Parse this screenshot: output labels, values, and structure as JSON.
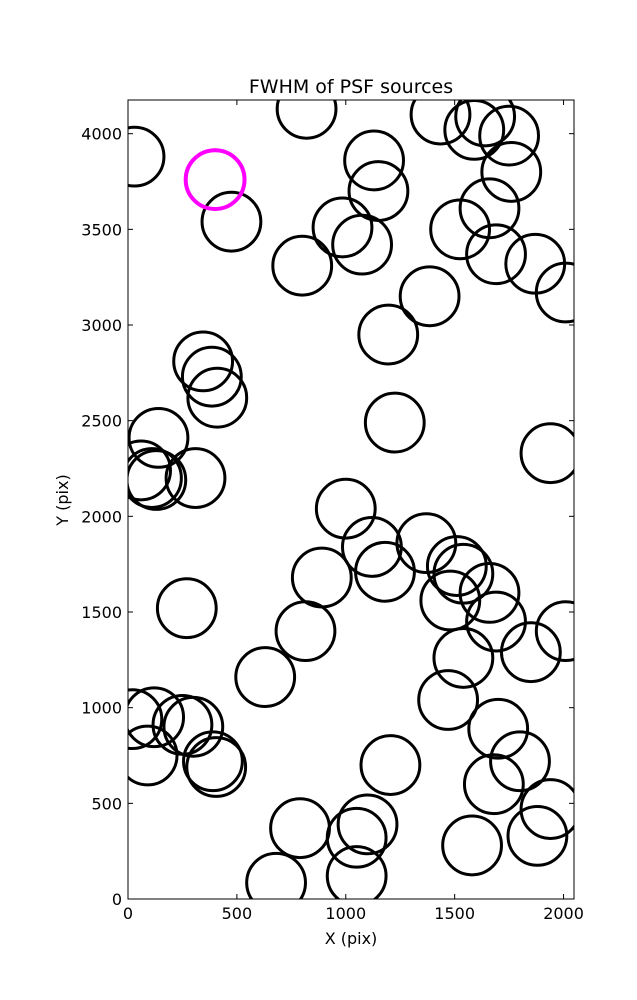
{
  "chart_data": {
    "type": "scatter",
    "title": "FWHM of PSF sources",
    "xlabel": "X (pix)",
    "ylabel": "Y (pix)",
    "xlim": [
      0,
      2048
    ],
    "ylim": [
      0,
      4176
    ],
    "xticks": [
      0,
      500,
      1000,
      1500,
      2000
    ],
    "yticks": [
      0,
      500,
      1000,
      1500,
      2000,
      2500,
      3000,
      3500,
      4000
    ],
    "grid": false,
    "marker": "open-circle",
    "marker_color": "#000000",
    "highlight_color": "#ff00ff",
    "highlight": {
      "x": 400,
      "y": 3760
    },
    "points": [
      {
        "x": 30,
        "y": 3880
      },
      {
        "x": 475,
        "y": 3540
      },
      {
        "x": 820,
        "y": 4130
      },
      {
        "x": 800,
        "y": 3310
      },
      {
        "x": 985,
        "y": 3510
      },
      {
        "x": 1075,
        "y": 3420
      },
      {
        "x": 1130,
        "y": 3860
      },
      {
        "x": 1150,
        "y": 3700
      },
      {
        "x": 1435,
        "y": 4100
      },
      {
        "x": 1590,
        "y": 4020
      },
      {
        "x": 1640,
        "y": 4090
      },
      {
        "x": 1750,
        "y": 3990
      },
      {
        "x": 1760,
        "y": 3800
      },
      {
        "x": 1660,
        "y": 3610
      },
      {
        "x": 1525,
        "y": 3500
      },
      {
        "x": 1690,
        "y": 3370
      },
      {
        "x": 1870,
        "y": 3320
      },
      {
        "x": 2010,
        "y": 3170
      },
      {
        "x": 1385,
        "y": 3150
      },
      {
        "x": 1195,
        "y": 2950
      },
      {
        "x": 345,
        "y": 2810
      },
      {
        "x": 385,
        "y": 2730
      },
      {
        "x": 410,
        "y": 2620
      },
      {
        "x": 140,
        "y": 2410
      },
      {
        "x": 60,
        "y": 2240
      },
      {
        "x": 110,
        "y": 2200
      },
      {
        "x": 130,
        "y": 2190
      },
      {
        "x": 310,
        "y": 2200
      },
      {
        "x": 1225,
        "y": 2490
      },
      {
        "x": 1940,
        "y": 2330
      },
      {
        "x": 1000,
        "y": 2040
      },
      {
        "x": 1120,
        "y": 1840
      },
      {
        "x": 890,
        "y": 1680
      },
      {
        "x": 1180,
        "y": 1710
      },
      {
        "x": 1370,
        "y": 1860
      },
      {
        "x": 1510,
        "y": 1740
      },
      {
        "x": 1540,
        "y": 1700
      },
      {
        "x": 1480,
        "y": 1560
      },
      {
        "x": 1660,
        "y": 1600
      },
      {
        "x": 1690,
        "y": 1450
      },
      {
        "x": 2010,
        "y": 1400
      },
      {
        "x": 1850,
        "y": 1290
      },
      {
        "x": 1540,
        "y": 1260
      },
      {
        "x": 1470,
        "y": 1040
      },
      {
        "x": 270,
        "y": 1520
      },
      {
        "x": 815,
        "y": 1400
      },
      {
        "x": 630,
        "y": 1160
      },
      {
        "x": 20,
        "y": 940
      },
      {
        "x": 120,
        "y": 950
      },
      {
        "x": 90,
        "y": 750
      },
      {
        "x": 250,
        "y": 910
      },
      {
        "x": 300,
        "y": 900
      },
      {
        "x": 390,
        "y": 720
      },
      {
        "x": 405,
        "y": 690
      },
      {
        "x": 1205,
        "y": 700
      },
      {
        "x": 1700,
        "y": 890
      },
      {
        "x": 1800,
        "y": 720
      },
      {
        "x": 1680,
        "y": 600
      },
      {
        "x": 1940,
        "y": 470
      },
      {
        "x": 1880,
        "y": 330
      },
      {
        "x": 1580,
        "y": 280
      },
      {
        "x": 790,
        "y": 370
      },
      {
        "x": 1100,
        "y": 390
      },
      {
        "x": 1050,
        "y": 320
      },
      {
        "x": 1050,
        "y": 120
      },
      {
        "x": 680,
        "y": 85
      }
    ],
    "marker_radius": 135
  }
}
